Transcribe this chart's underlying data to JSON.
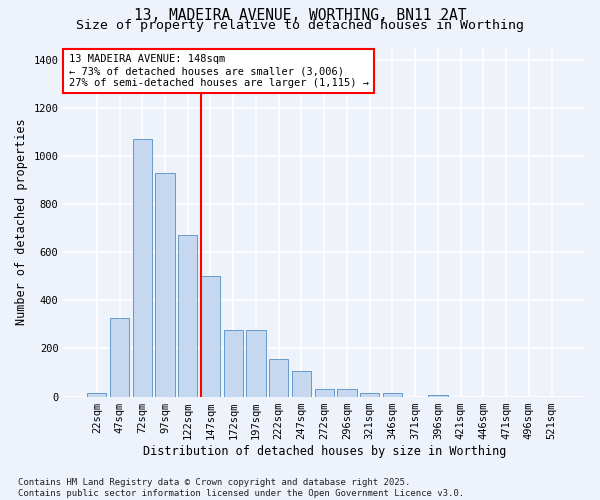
{
  "title1": "13, MADEIRA AVENUE, WORTHING, BN11 2AT",
  "title2": "Size of property relative to detached houses in Worthing",
  "xlabel": "Distribution of detached houses by size in Worthing",
  "ylabel": "Number of detached properties",
  "categories": [
    "22sqm",
    "47sqm",
    "72sqm",
    "97sqm",
    "122sqm",
    "147sqm",
    "172sqm",
    "197sqm",
    "222sqm",
    "247sqm",
    "272sqm",
    "296sqm",
    "321sqm",
    "346sqm",
    "371sqm",
    "396sqm",
    "421sqm",
    "446sqm",
    "471sqm",
    "496sqm",
    "521sqm"
  ],
  "values": [
    15,
    325,
    1070,
    930,
    670,
    500,
    275,
    275,
    155,
    105,
    30,
    30,
    15,
    15,
    0,
    5,
    0,
    0,
    0,
    0,
    0
  ],
  "bar_color": "#c5d8f0",
  "bar_edge_color": "#6699cc",
  "vline_color": "red",
  "vline_x_index": 5,
  "annotation_text": "13 MADEIRA AVENUE: 148sqm\n← 73% of detached houses are smaller (3,006)\n27% of semi-detached houses are larger (1,115) →",
  "annotation_box_color": "white",
  "annotation_box_edge_color": "red",
  "ylim": [
    0,
    1450
  ],
  "yticks": [
    0,
    200,
    400,
    600,
    800,
    1000,
    1200,
    1400
  ],
  "footnote": "Contains HM Land Registry data © Crown copyright and database right 2025.\nContains public sector information licensed under the Open Government Licence v3.0.",
  "bg_color": "#eef2fb",
  "plot_bg_color": "#eef2fb",
  "grid_color": "white",
  "title_fontsize": 10.5,
  "subtitle_fontsize": 9.5,
  "axis_label_fontsize": 8.5,
  "tick_fontsize": 7.5,
  "annotation_fontsize": 7.5,
  "footnote_fontsize": 6.5
}
